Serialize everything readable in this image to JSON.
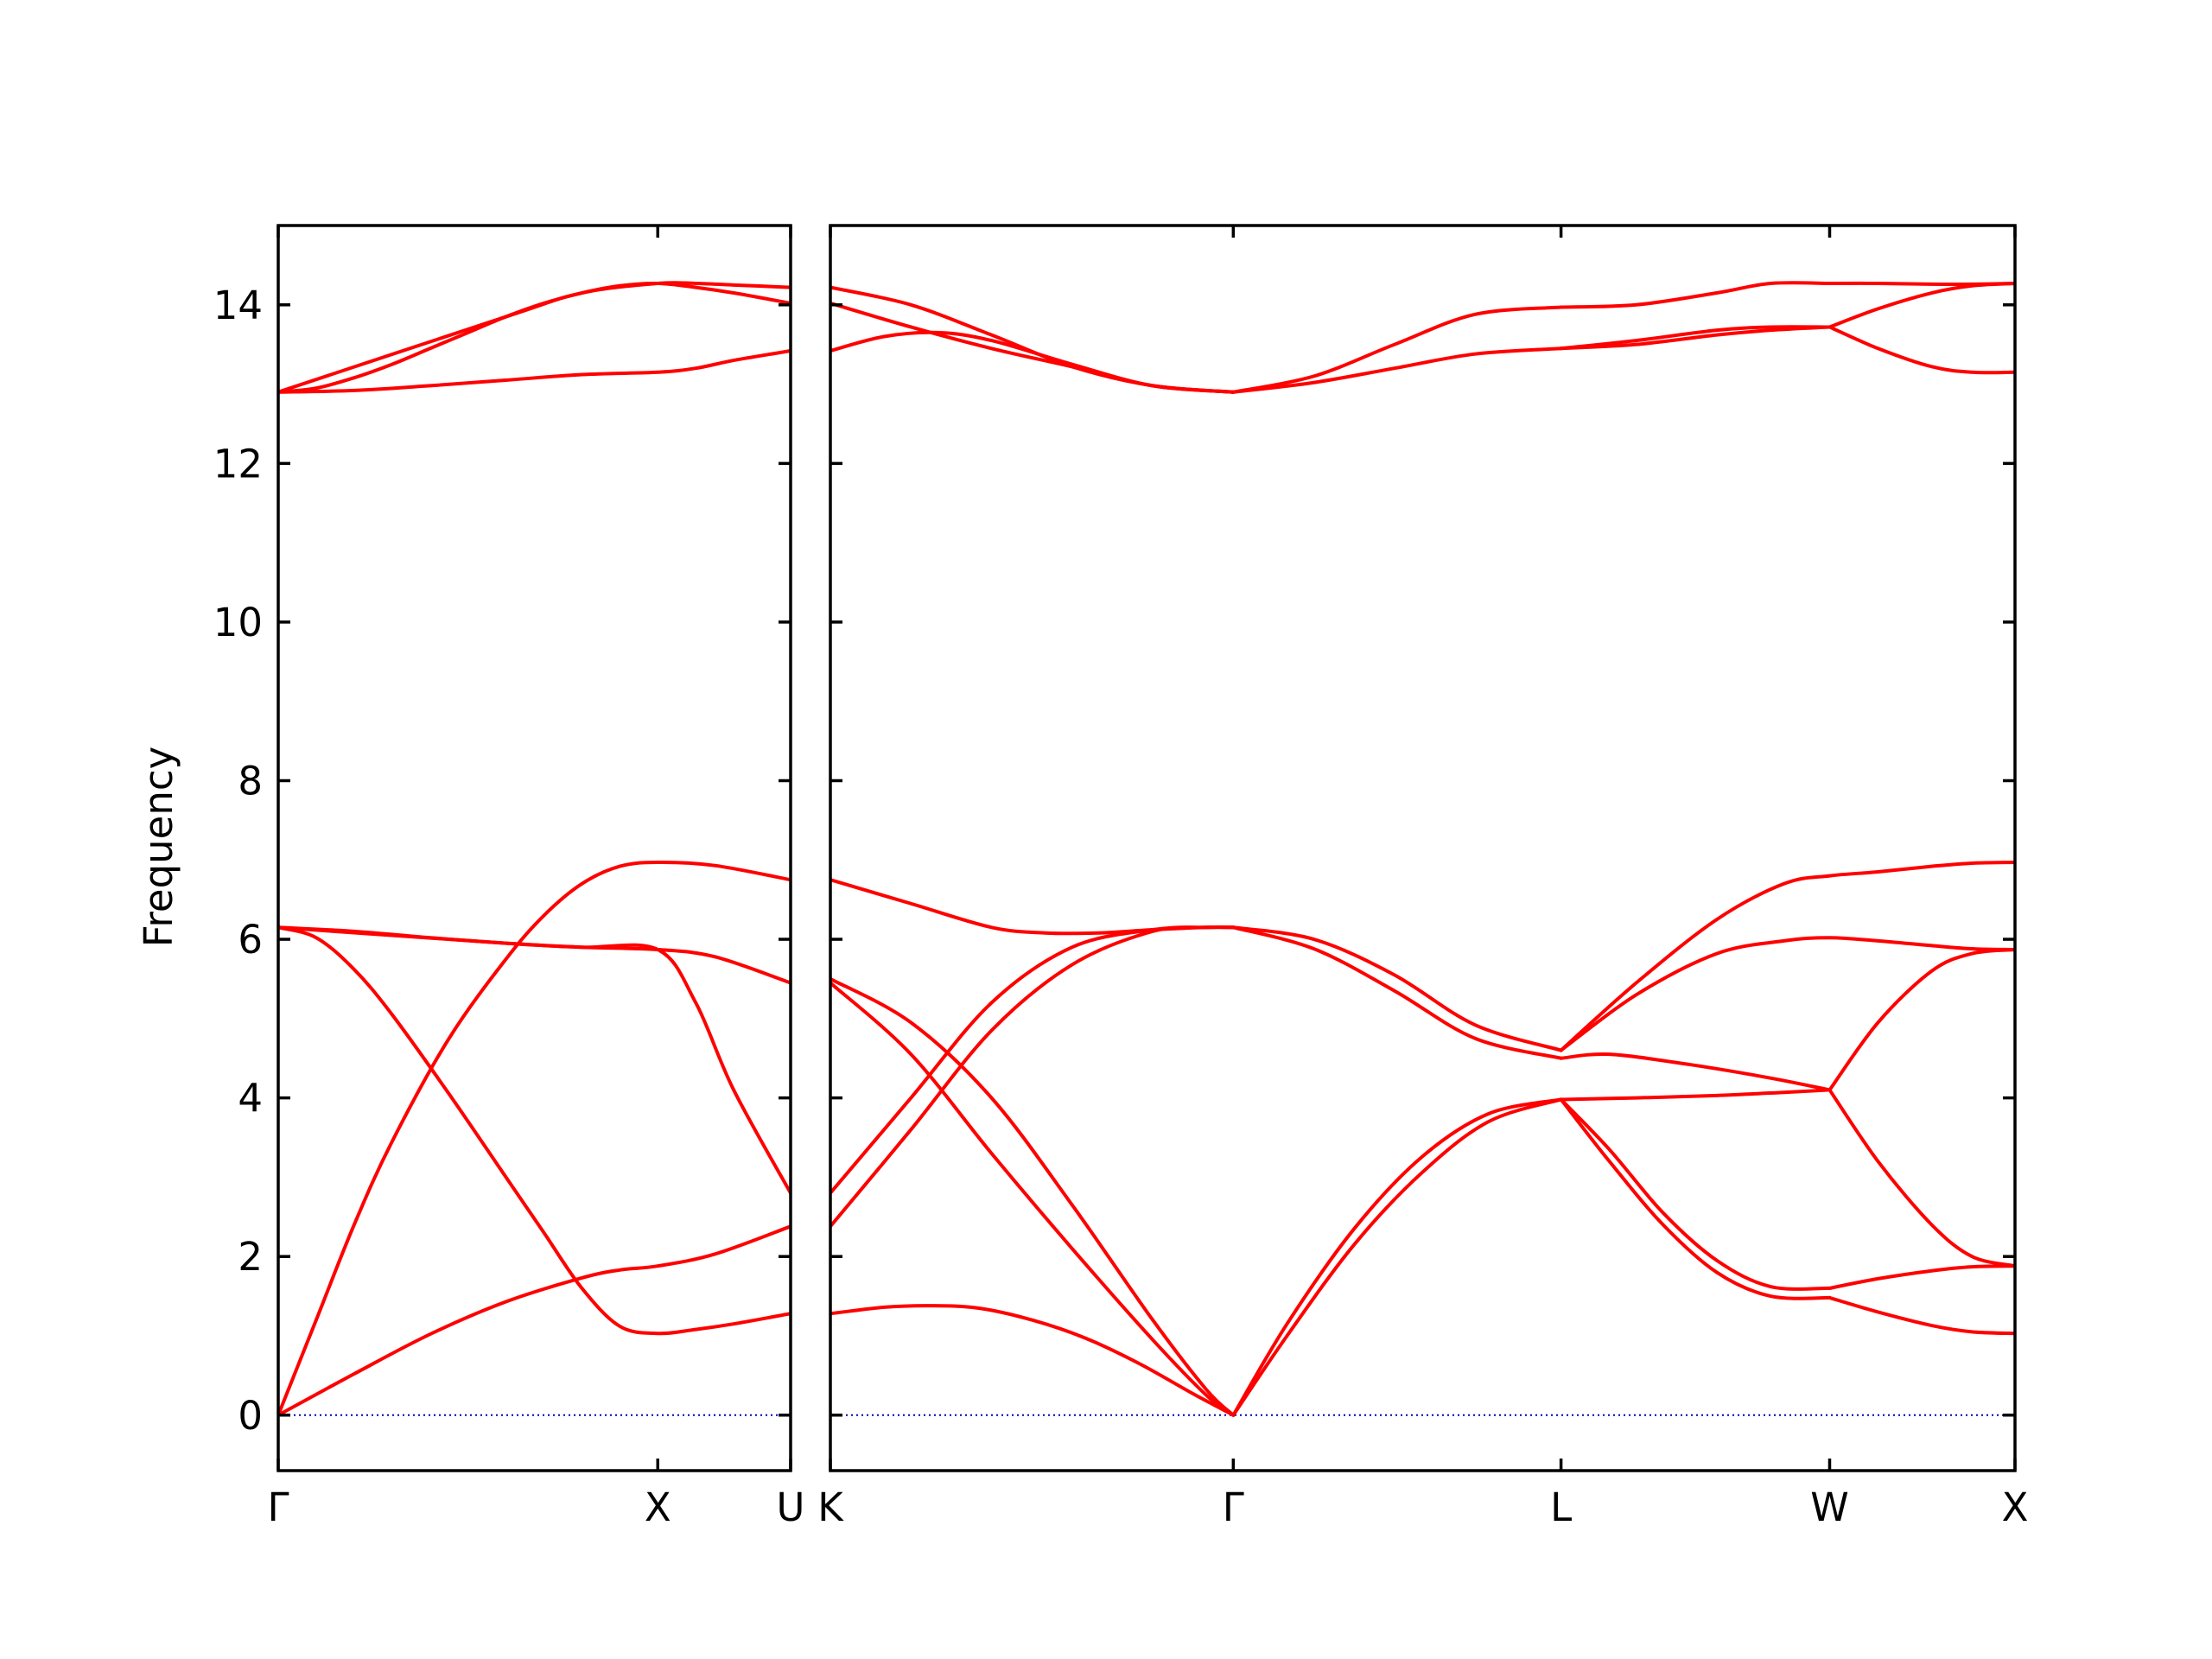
{
  "chart_data": {
    "type": "line",
    "title": "",
    "ylabel": "Frequency",
    "xlabel": "",
    "ylim": [
      -0.7,
      15
    ],
    "yticks": [
      0,
      2,
      4,
      6,
      8,
      10,
      12,
      14
    ],
    "colors": {
      "band": "#ff0000",
      "zero_line": "#0000bb",
      "frame": "#000000"
    },
    "grid": false,
    "legend": "none",
    "panels": [
      {
        "path": [
          "Γ",
          "X",
          "U"
        ],
        "x_range": [
          0,
          1.35
        ],
        "high_symmetry_points": [
          {
            "label": "Γ",
            "x": 0
          },
          {
            "label": "X",
            "x": 1.0
          },
          {
            "label": "U",
            "x": 1.35
          }
        ],
        "series": [
          {
            "x": [
              0,
              0.2,
              0.4,
              0.6,
              0.8,
              0.9,
              1.0,
              1.15,
              1.35
            ],
            "y": [
              0,
              0.52,
              1.02,
              1.43,
              1.73,
              1.83,
              1.88,
              2.03,
              2.38
            ]
          },
          {
            "x": [
              0,
              0.1,
              0.2,
              0.3,
              0.45,
              0.6,
              0.7,
              0.8,
              0.9,
              1.0,
              1.15,
              1.35
            ],
            "y": [
              0,
              1.2,
              2.4,
              3.45,
              4.75,
              5.75,
              6.3,
              6.7,
              6.92,
              6.97,
              6.93,
              6.75
            ]
          },
          {
            "x": [
              0,
              0.1,
              0.2,
              0.3,
              0.45,
              0.6,
              0.7,
              0.8,
              0.9,
              1.0,
              1.1,
              1.2,
              1.35
            ],
            "y": [
              6.15,
              6.02,
              5.62,
              5.05,
              4.05,
              3.0,
              2.3,
              1.6,
              1.12,
              1.03,
              1.08,
              1.15,
              1.28
            ]
          },
          {
            "x": [
              0,
              0.2,
              0.4,
              0.6,
              0.8,
              1.0,
              1.15,
              1.35
            ],
            "y": [
              6.15,
              6.1,
              6.02,
              5.95,
              5.9,
              5.87,
              5.78,
              5.45
            ]
          },
          {
            "x": [
              0,
              0.6,
              0.8,
              1.0,
              1.1,
              1.2,
              1.35
            ],
            "y": [
              6.15,
              5.95,
              5.9,
              5.87,
              5.2,
              4.1,
              2.8
            ]
          },
          {
            "x": [
              0,
              0.2,
              0.4,
              0.6,
              0.8,
              1.0,
              1.1,
              1.2,
              1.35
            ],
            "y": [
              12.9,
              12.92,
              12.98,
              13.05,
              13.12,
              13.15,
              13.2,
              13.3,
              13.42
            ]
          },
          {
            "x": [
              0,
              0.1,
              0.2,
              0.3,
              0.4,
              0.5,
              0.6,
              0.7,
              0.8,
              0.9,
              1.0,
              1.1,
              1.2,
              1.35
            ],
            "y": [
              12.9,
              12.95,
              13.08,
              13.25,
              13.45,
              13.65,
              13.85,
              14.02,
              14.15,
              14.24,
              14.27,
              14.22,
              14.15,
              14.02
            ]
          },
          {
            "x": [
              0,
              0.6,
              0.8,
              1.0,
              1.1,
              1.2,
              1.35
            ],
            "y": [
              12.9,
              13.85,
              14.15,
              14.27,
              14.27,
              14.25,
              14.22
            ]
          }
        ]
      },
      {
        "path": [
          "K",
          "Γ",
          "L",
          "W",
          "X"
        ],
        "x_range": [
          0,
          4.41
        ],
        "high_symmetry_points": [
          {
            "label": "K",
            "x": 0
          },
          {
            "label": "Γ",
            "x": 1.5
          },
          {
            "label": "L",
            "x": 2.72
          },
          {
            "label": "W",
            "x": 3.72
          },
          {
            "label": "X",
            "x": 4.41
          }
        ],
        "series": [
          {
            "x": [
              0,
              0.2,
              0.37,
              0.55,
              0.75,
              0.95,
              1.15,
              1.35,
              1.5
            ],
            "y": [
              1.28,
              1.36,
              1.38,
              1.35,
              1.2,
              0.97,
              0.65,
              0.27,
              0
            ]
          },
          {
            "x": [
              0,
              0.3,
              0.6,
              0.9,
              1.2,
              1.4,
              1.5
            ],
            "y": [
              2.38,
              3.6,
              4.85,
              5.68,
              6.1,
              6.15,
              6.15
            ]
          },
          {
            "x": [
              0,
              0.3,
              0.6,
              0.9,
              1.2,
              1.4,
              1.5
            ],
            "y": [
              2.8,
              4.0,
              5.2,
              5.9,
              6.12,
              6.15,
              6.15
            ]
          },
          {
            "x": [
              0,
              0.3,
              0.6,
              0.9,
              1.2,
              1.4,
              1.5
            ],
            "y": [
              5.45,
              4.55,
              3.3,
              2.1,
              0.95,
              0.25,
              0
            ]
          },
          {
            "x": [
              0,
              0.3,
              0.6,
              0.9,
              1.2,
              1.4,
              1.5
            ],
            "y": [
              5.5,
              4.95,
              4.0,
              2.65,
              1.2,
              0.32,
              0
            ]
          },
          {
            "x": [
              0,
              0.3,
              0.6,
              0.8,
              1.0,
              1.2,
              1.4,
              1.5
            ],
            "y": [
              6.75,
              6.45,
              6.15,
              6.08,
              6.08,
              6.12,
              6.15,
              6.15
            ]
          },
          {
            "x": [
              1.5,
              1.8,
              2.1,
              2.4,
              2.72
            ],
            "y": [
              6.15,
              6.0,
              5.55,
              4.92,
              4.6
            ]
          },
          {
            "x": [
              1.5,
              1.8,
              2.1,
              2.4,
              2.72
            ],
            "y": [
              6.15,
              5.88,
              5.35,
              4.75,
              4.5
            ]
          },
          {
            "x": [
              1.5,
              1.7,
              1.95,
              2.2,
              2.45,
              2.72
            ],
            "y": [
              0,
              1.15,
              2.35,
              3.25,
              3.8,
              3.98
            ]
          },
          {
            "x": [
              1.5,
              1.7,
              1.95,
              2.2,
              2.45,
              2.72
            ],
            "y": [
              0,
              1.0,
              2.15,
              3.05,
              3.7,
              3.98
            ]
          },
          {
            "x": [
              2.72,
              3.0,
              3.3,
              3.55,
              3.72,
              3.9,
              4.1,
              4.25,
              4.41
            ],
            "y": [
              4.6,
              5.45,
              6.25,
              6.7,
              6.8,
              6.85,
              6.92,
              6.96,
              6.97
            ]
          },
          {
            "x": [
              2.72,
              3.0,
              3.3,
              3.55,
              3.72,
              3.9,
              4.1,
              4.25,
              4.41
            ],
            "y": [
              4.6,
              5.3,
              5.82,
              5.98,
              6.02,
              5.98,
              5.92,
              5.88,
              5.87
            ]
          },
          {
            "x": [
              2.72,
              2.9,
              3.2,
              3.5,
              3.72
            ],
            "y": [
              4.5,
              4.55,
              4.42,
              4.25,
              4.1
            ]
          },
          {
            "x": [
              2.72,
              3.0,
              3.3,
              3.55,
              3.72
            ],
            "y": [
              3.98,
              4.0,
              4.03,
              4.07,
              4.1
            ]
          },
          {
            "x": [
              2.72,
              2.9,
              3.1,
              3.3,
              3.5,
              3.72
            ],
            "y": [
              3.98,
              3.35,
              2.55,
              1.95,
              1.62,
              1.6
            ]
          },
          {
            "x": [
              2.72,
              2.9,
              3.1,
              3.3,
              3.5,
              3.72
            ],
            "y": [
              3.98,
              3.2,
              2.4,
              1.8,
              1.5,
              1.48
            ]
          },
          {
            "x": [
              3.72,
              3.9,
              4.1,
              4.25,
              4.41
            ],
            "y": [
              4.1,
              4.95,
              5.6,
              5.82,
              5.87
            ]
          },
          {
            "x": [
              3.72,
              3.9,
              4.1,
              4.25,
              4.41
            ],
            "y": [
              4.1,
              3.2,
              2.4,
              2.0,
              1.88
            ]
          },
          {
            "x": [
              3.72,
              3.9,
              4.1,
              4.25,
              4.41
            ],
            "y": [
              1.6,
              1.72,
              1.82,
              1.87,
              1.88
            ]
          },
          {
            "x": [
              3.72,
              3.9,
              4.1,
              4.25,
              4.41
            ],
            "y": [
              1.48,
              1.3,
              1.13,
              1.05,
              1.03
            ]
          },
          {
            "x": [
              0,
              0.3,
              0.6,
              0.9,
              1.2,
              1.5
            ],
            "y": [
              14.22,
              14.0,
              13.62,
              13.22,
              12.98,
              12.9
            ]
          },
          {
            "x": [
              0,
              0.3,
              0.6,
              0.9,
              1.2,
              1.5
            ],
            "y": [
              14.02,
              13.72,
              13.45,
              13.22,
              12.98,
              12.9
            ]
          },
          {
            "x": [
              0,
              0.2,
              0.4,
              0.6,
              0.9,
              1.2,
              1.5
            ],
            "y": [
              13.42,
              13.6,
              13.65,
              13.55,
              13.25,
              12.98,
              12.9
            ]
          },
          {
            "x": [
              1.5,
              1.8,
              2.1,
              2.4,
              2.72
            ],
            "y": [
              12.9,
              13.1,
              13.5,
              13.88,
              13.97
            ]
          },
          {
            "x": [
              1.5,
              1.8,
              2.1,
              2.4,
              2.72
            ],
            "y": [
              12.9,
              13.02,
              13.2,
              13.38,
              13.45
            ]
          },
          {
            "x": [
              2.72,
              3.0,
              3.3,
              3.5,
              3.72
            ],
            "y": [
              13.97,
              14.0,
              14.15,
              14.27,
              14.27
            ]
          },
          {
            "x": [
              2.72,
              3.0,
              3.3,
              3.5,
              3.72
            ],
            "y": [
              13.45,
              13.55,
              13.68,
              13.72,
              13.72
            ]
          },
          {
            "x": [
              2.72,
              3.0,
              3.3,
              3.5,
              3.72
            ],
            "y": [
              13.45,
              13.5,
              13.62,
              13.68,
              13.72
            ]
          },
          {
            "x": [
              3.72,
              3.9,
              4.1,
              4.25,
              4.41
            ],
            "y": [
              14.27,
              14.27,
              14.26,
              14.26,
              14.27
            ]
          },
          {
            "x": [
              3.72,
              3.9,
              4.1,
              4.25,
              4.41
            ],
            "y": [
              13.72,
              13.95,
              14.15,
              14.24,
              14.27
            ]
          },
          {
            "x": [
              3.72,
              3.9,
              4.1,
              4.25,
              4.41
            ],
            "y": [
              13.72,
              13.45,
              13.22,
              13.15,
              13.15
            ]
          }
        ]
      }
    ]
  }
}
